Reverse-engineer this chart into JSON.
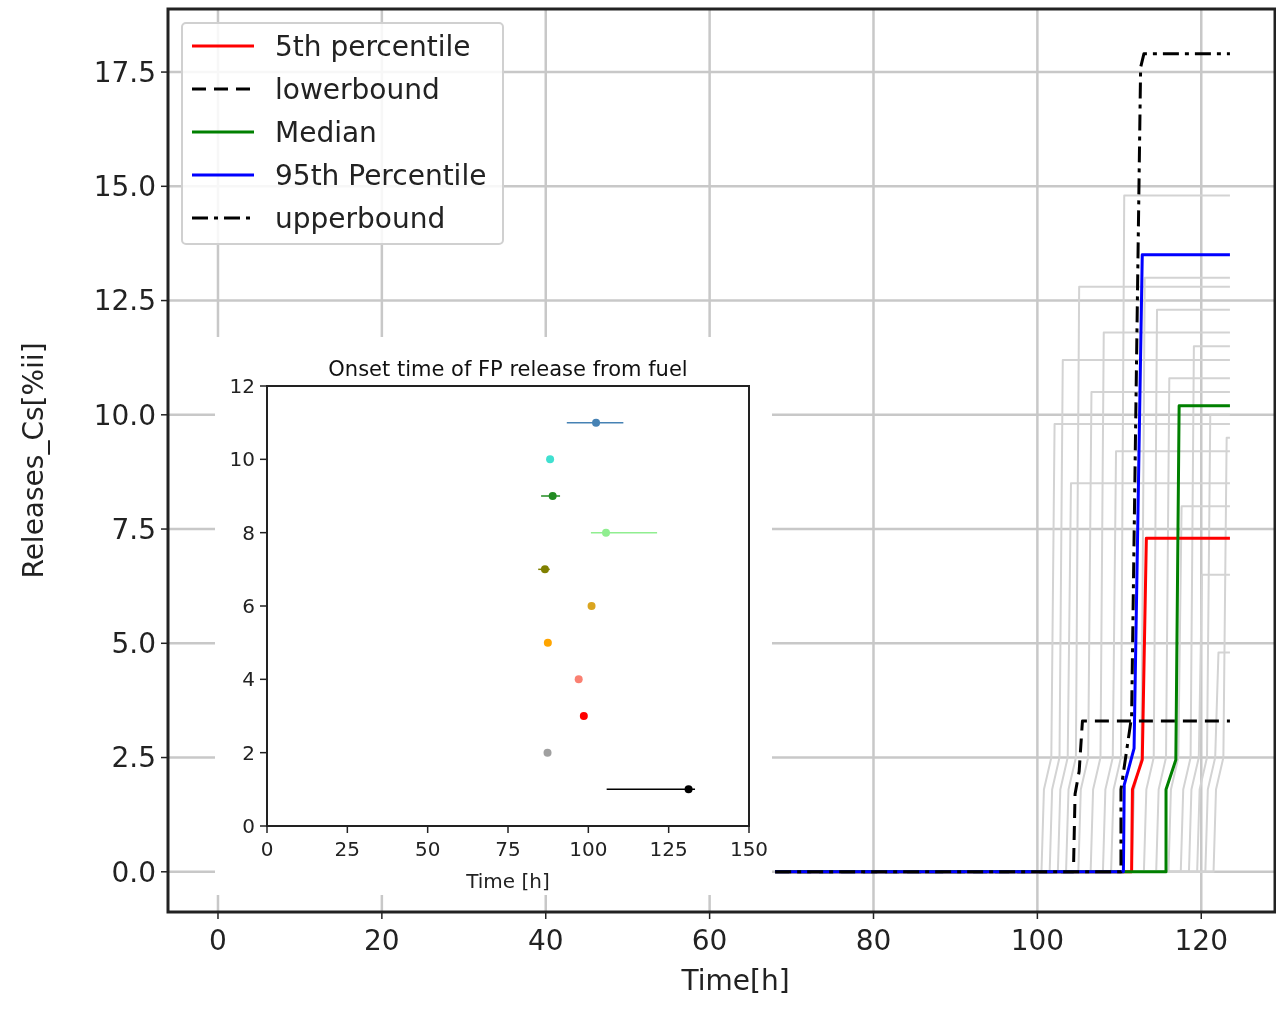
{
  "chart_data": [
    {
      "type": "line",
      "xlabel": "Time[h]",
      "ylabel": "Releases_Cs[%ii]",
      "xlim": [
        -6.1,
        129
      ],
      "ylim": [
        -0.88,
        18.88
      ],
      "xticks": [
        0,
        20,
        40,
        60,
        80,
        100,
        120
      ],
      "yticks": [
        {
          "value": 0,
          "label": "0.0"
        },
        2.5,
        {
          "value": 5,
          "label": "5.0"
        },
        7.5,
        {
          "value": 10,
          "label": "10.0"
        },
        12.5,
        {
          "value": 15,
          "label": "15.0"
        },
        17.5
      ],
      "grid": true,
      "legend": "top left",
      "series": [
        {
          "name": "5th percentile",
          "color": "#ff0000",
          "line_style": "solid",
          "x": [
            68,
            111.5,
            111.6,
            112.8,
            113.3,
            123.5
          ],
          "values": [
            0,
            0,
            1.8,
            2.45,
            7.3,
            7.3
          ]
        },
        {
          "name": "lowerbound",
          "color": "#000000",
          "line_style": "dashed",
          "x": [
            68,
            104.4,
            104.6,
            105.1,
            105.5,
            123.5
          ],
          "values": [
            0,
            0,
            1.7,
            2.2,
            3.3,
            3.3
          ]
        },
        {
          "name": "Median",
          "color": "#008000",
          "line_style": "solid",
          "x": [
            68,
            115.7,
            115.7,
            116.9,
            117.3,
            123.5
          ],
          "values": [
            0,
            0,
            1.8,
            2.45,
            10.2,
            10.2
          ]
        },
        {
          "name": "95th Percentile",
          "color": "#0000ff",
          "line_style": "solid",
          "x": [
            68,
            110.5,
            110.6,
            111.8,
            112.8,
            123.5
          ],
          "values": [
            0,
            0,
            1.9,
            2.7,
            13.5,
            13.5
          ]
        },
        {
          "name": "upperbound",
          "color": "#000000",
          "line_style": "dashdot",
          "x": [
            68,
            110.2,
            110.2,
            111.5,
            112.6,
            113,
            123.5
          ],
          "values": [
            0,
            0,
            1.8,
            3.4,
            17.6,
            17.9,
            17.9
          ]
        },
        {
          "color": "#d3d3d3",
          "x": [
            68,
            100.5,
            100.8,
            101.7,
            102.1,
            123.5
          ],
          "values": [
            0,
            0,
            1.8,
            2.5,
            9.8,
            9.8
          ]
        },
        {
          "color": "#d3d3d3",
          "x": [
            68,
            101.5,
            101.8,
            102.7,
            103.1,
            123.5
          ],
          "values": [
            0,
            0,
            1.8,
            2.5,
            11.2,
            11.2
          ]
        },
        {
          "color": "#d3d3d3",
          "x": [
            68,
            102.5,
            102.8,
            103.7,
            104.1,
            123.5
          ],
          "values": [
            0,
            0,
            1.8,
            2.5,
            8.5,
            8.5
          ]
        },
        {
          "color": "#d3d3d3",
          "x": [
            68,
            103.5,
            103.8,
            104.7,
            105.1,
            123.5
          ],
          "values": [
            0,
            0,
            1.8,
            2.5,
            12.8,
            12.8
          ]
        },
        {
          "color": "#d3d3d3",
          "x": [
            68,
            105,
            105.3,
            106.2,
            106.6,
            123.5
          ],
          "values": [
            0,
            0,
            1.8,
            2.5,
            10.5,
            10.5
          ]
        },
        {
          "color": "#d3d3d3",
          "x": [
            68,
            106.5,
            106.8,
            107.7,
            108.1,
            123.5
          ],
          "values": [
            0,
            0,
            1.8,
            2.5,
            11.8,
            11.8
          ]
        },
        {
          "color": "#d3d3d3",
          "x": [
            68,
            108,
            108.3,
            109.2,
            109.6,
            123.5
          ],
          "values": [
            0,
            0,
            1.8,
            2.5,
            9.2,
            9.2
          ]
        },
        {
          "color": "#d3d3d3",
          "x": [
            68,
            109,
            109.3,
            110.2,
            110.6,
            123.5
          ],
          "values": [
            0,
            0,
            1.8,
            2.5,
            14.8,
            14.8
          ]
        },
        {
          "color": "#d3d3d3",
          "x": [
            68,
            111.5,
            111.8,
            112.7,
            113.1,
            123.5
          ],
          "values": [
            0,
            0,
            1.8,
            2.5,
            13,
            13
          ]
        },
        {
          "color": "#d3d3d3",
          "x": [
            68,
            113,
            113.3,
            114.2,
            114.6,
            123.5
          ],
          "values": [
            0,
            0,
            1.8,
            2.5,
            12.3,
            12.3
          ]
        },
        {
          "color": "#d3d3d3",
          "x": [
            68,
            114.5,
            114.8,
            115.7,
            116.1,
            123.5
          ],
          "values": [
            0,
            0,
            1.8,
            2.5,
            10.8,
            10.8
          ]
        },
        {
          "color": "#d3d3d3",
          "x": [
            68,
            116,
            116.3,
            117.2,
            117.6,
            123.5
          ],
          "values": [
            0,
            0,
            1.8,
            2.5,
            8,
            8
          ]
        },
        {
          "color": "#d3d3d3",
          "x": [
            68,
            117.5,
            117.8,
            118.7,
            119.1,
            123.5
          ],
          "values": [
            0,
            0,
            1.8,
            2.5,
            11.5,
            11.5
          ]
        },
        {
          "color": "#d3d3d3",
          "x": [
            68,
            118.5,
            118.8,
            119.7,
            120.1,
            123.5
          ],
          "values": [
            0,
            0,
            1.8,
            2.5,
            6.5,
            6.5
          ]
        },
        {
          "color": "#d3d3d3",
          "x": [
            68,
            119.5,
            119.8,
            120.7,
            121.1,
            123.5
          ],
          "values": [
            0,
            0,
            1.8,
            2.5,
            10,
            10
          ]
        },
        {
          "color": "#d3d3d3",
          "x": [
            68,
            120.5,
            120.8,
            121.7,
            122.1,
            123.5
          ],
          "values": [
            0,
            0,
            1.8,
            2.5,
            4.8,
            4.8
          ]
        },
        {
          "color": "#d3d3d3",
          "x": [
            68,
            121.5,
            121.8,
            122.7,
            123.1,
            123.5
          ],
          "values": [
            0,
            0,
            1.8,
            2.5,
            9.5,
            9.5
          ]
        }
      ]
    },
    {
      "type": "scatter",
      "title": "Onset time of FP release from fuel",
      "xlabel": "Time [h]",
      "xlim": [
        0,
        150
      ],
      "ylim": [
        0,
        12
      ],
      "xticks": [
        0,
        25,
        50,
        75,
        100,
        125,
        150
      ],
      "yticks": [
        0,
        2,
        4,
        6,
        8,
        10,
        12
      ],
      "marker": "circle",
      "series": [
        {
          "x": [
            102.4,
            88.1,
            88.9,
            105.5,
            86.5,
            101,
            87.4,
            97,
            98.6,
            87.3,
            131.2
          ],
          "values": [
            11,
            10,
            9,
            8,
            7,
            6,
            5,
            4,
            3,
            2,
            1
          ],
          "colors": [
            "#4682b4",
            "#40e0d0",
            "#228b22",
            "#90ee90",
            "#808000",
            "#daa520",
            "#ffa500",
            "#fa8072",
            "#ff0000",
            "#a0a0a0",
            "#000000"
          ],
          "xerrors": [
            [
              93.3,
              110.9
            ],
            null,
            [
              85.3,
              91.2
            ],
            [
              100.8,
              121.4
            ],
            [
              84.4,
              88
            ],
            null,
            null,
            null,
            null,
            null,
            [
              105.7,
              133.2
            ]
          ]
        }
      ]
    }
  ]
}
